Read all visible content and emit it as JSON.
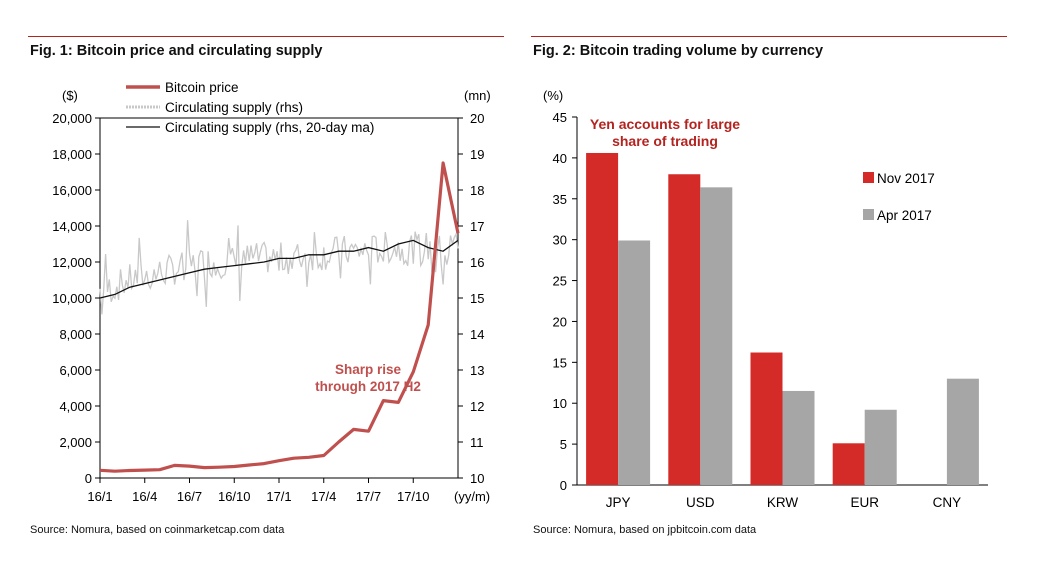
{
  "figures": [
    {
      "title": "Fig. 1: Bitcoin price and circulating supply",
      "source": "Source: Nomura, based on coinmarketcap.com data"
    },
    {
      "title": "Fig. 2: Bitcoin trading volume by currency",
      "source": "Source: Nomura, based on jpbitcoin.com data"
    }
  ],
  "chart_data": [
    {
      "type": "line",
      "title": "Fig. 1: Bitcoin price and circulating supply",
      "y_left": {
        "unit_label": "($)",
        "range": [
          0,
          20000
        ],
        "ticks": [
          "0",
          "2,000",
          "4,000",
          "6,000",
          "8,000",
          "10,000",
          "12,000",
          "14,000",
          "16,000",
          "18,000",
          "20,000"
        ]
      },
      "y_right": {
        "unit_label": "(mn)",
        "range": [
          10,
          20
        ],
        "ticks": [
          "10",
          "11",
          "12",
          "13",
          "14",
          "15",
          "16",
          "17",
          "18",
          "19",
          "20"
        ]
      },
      "x": {
        "unit_label": "(yy/m)",
        "ticks": [
          "16/1",
          "16/4",
          "16/7",
          "16/10",
          "17/1",
          "17/4",
          "17/7",
          "17/10"
        ]
      },
      "legend": {
        "position": "top-left",
        "entries": [
          "Bitcoin price",
          "Circulating supply (rhs)",
          "Circulating supply (rhs, 20-day ma)"
        ]
      },
      "annotation": [
        "Sharp rise",
        "through 2017 H2"
      ],
      "grid": false,
      "series": [
        {
          "name": "Bitcoin price",
          "axis": "left",
          "color": "#c0504d",
          "x": [
            "16/1",
            "16/2",
            "16/3",
            "16/4",
            "16/5",
            "16/6",
            "16/7",
            "16/8",
            "16/9",
            "16/10",
            "16/11",
            "16/12",
            "17/1",
            "17/2",
            "17/3",
            "17/4",
            "17/5",
            "17/6",
            "17/7",
            "17/8",
            "17/9",
            "17/10",
            "17/11",
            "17/12",
            "18/1"
          ],
          "values": [
            430,
            380,
            415,
            440,
            460,
            700,
            660,
            580,
            600,
            640,
            720,
            800,
            960,
            1100,
            1150,
            1250,
            2000,
            2700,
            2600,
            4300,
            4200,
            5900,
            8500,
            17500,
            13600
          ]
        },
        {
          "name": "Circulating supply (rhs)",
          "axis": "right",
          "color": "#c8c8c8",
          "x": [
            "16/1",
            "16/2",
            "16/3",
            "16/4",
            "16/5",
            "16/6",
            "16/7",
            "16/8",
            "16/9",
            "16/10",
            "16/11",
            "16/12",
            "17/1",
            "17/2",
            "17/3",
            "17/4",
            "17/5",
            "17/6",
            "17/7",
            "17/8",
            "17/9",
            "17/10",
            "17/11",
            "17/12",
            "18/1"
          ],
          "values": [
            15.2,
            15.3,
            15.5,
            15.6,
            15.7,
            15.8,
            15.9,
            16.0,
            16.0,
            16.0,
            16.1,
            16.1,
            16.1,
            16.1,
            16.2,
            16.2,
            16.3,
            16.3,
            16.3,
            16.4,
            16.4,
            16.4,
            16.4,
            16.3,
            16.6
          ]
        },
        {
          "name": "Circulating supply (rhs, 20-day ma)",
          "axis": "right",
          "color": "#111111",
          "x": [
            "16/1",
            "16/2",
            "16/3",
            "16/4",
            "16/5",
            "16/6",
            "16/7",
            "16/8",
            "16/9",
            "16/10",
            "16/11",
            "16/12",
            "17/1",
            "17/2",
            "17/3",
            "17/4",
            "17/5",
            "17/6",
            "17/7",
            "17/8",
            "17/9",
            "17/10",
            "17/11",
            "17/12",
            "18/1"
          ],
          "values": [
            15.0,
            15.1,
            15.3,
            15.4,
            15.5,
            15.6,
            15.7,
            15.8,
            15.85,
            15.9,
            15.95,
            16.0,
            16.1,
            16.1,
            16.2,
            16.2,
            16.3,
            16.3,
            16.4,
            16.3,
            16.5,
            16.6,
            16.4,
            16.3,
            16.6
          ]
        }
      ]
    },
    {
      "type": "bar",
      "title": "Fig. 2: Bitcoin trading volume by currency",
      "ylabel": "(%)",
      "ylim": [
        0,
        45
      ],
      "y_ticks": [
        "0",
        "5",
        "10",
        "15",
        "20",
        "25",
        "30",
        "35",
        "40",
        "45"
      ],
      "categories": [
        "JPY",
        "USD",
        "KRW",
        "EUR",
        "CNY"
      ],
      "legend": {
        "position": "right",
        "entries": [
          "Nov 2017",
          "Apr 2017"
        ]
      },
      "annotation": [
        "Yen accounts for large",
        "share of trading"
      ],
      "series": [
        {
          "name": "Nov 2017",
          "color": "#d42a28",
          "values": [
            40.6,
            38.0,
            16.2,
            5.1,
            0
          ]
        },
        {
          "name": "Apr 2017",
          "color": "#a6a6a6",
          "values": [
            29.9,
            36.4,
            11.5,
            9.2,
            13.0
          ]
        }
      ]
    }
  ]
}
